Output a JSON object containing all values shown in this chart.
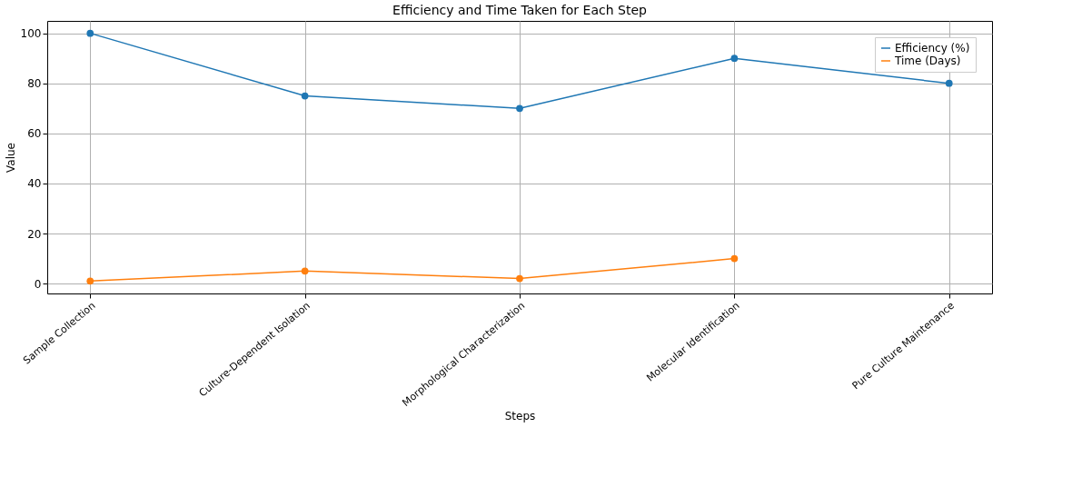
{
  "chart_data": {
    "type": "line",
    "title": "Efficiency and Time Taken for Each Step",
    "xlabel": "Steps",
    "ylabel": "Value",
    "categories": [
      "Sample Collection",
      "Culture-Dependent Isolation",
      "Morphological Characterization",
      "Molecular Identification",
      "Pure Culture Maintenance"
    ],
    "series": [
      {
        "name": "Efficiency (%)",
        "color": "#1f77b4",
        "values": [
          100,
          75,
          70,
          90,
          80
        ]
      },
      {
        "name": "Time (Days)",
        "color": "#ff7f0e",
        "values": [
          1,
          5,
          2,
          10,
          null
        ]
      }
    ],
    "ylim": [
      -3.95,
      104.95
    ],
    "yticks": [
      0,
      20,
      40,
      60,
      80,
      100
    ],
    "grid": true,
    "legend": "top right",
    "marker": "circle",
    "line_style": "solid"
  }
}
